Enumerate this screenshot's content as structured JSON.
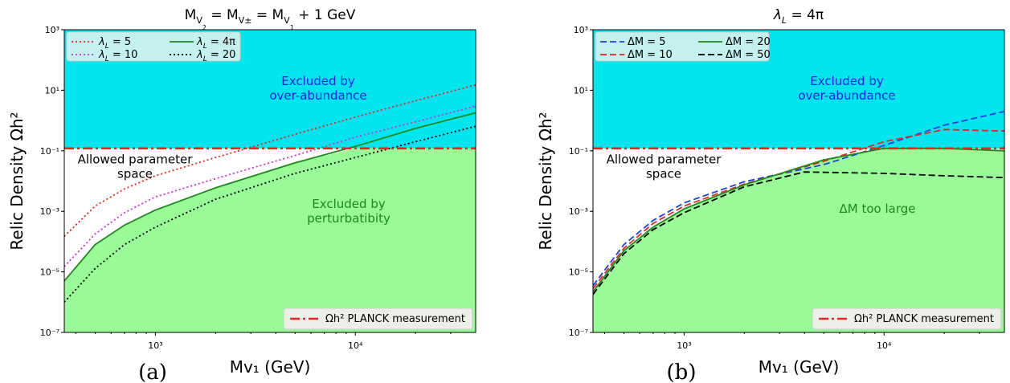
{
  "chart_data": [
    {
      "type": "line",
      "panel": "a",
      "caption": "(a)",
      "title": "M_{V2} = M_{V±} = M_{V1} + 1 GeV",
      "xlabel": "Mv₁ (GeV)",
      "ylabel": "Relic Density Ωh²",
      "xscale": "log",
      "yscale": "log",
      "xlim": [
        350,
        40000
      ],
      "ylim": [
        1e-07,
        1000
      ],
      "xticks": [
        {
          "value": 1000,
          "label": "10³"
        },
        {
          "value": 10000,
          "label": "10⁴"
        }
      ],
      "yticks": [
        {
          "value": 1e-07,
          "label": "10⁻⁷"
        },
        {
          "value": 1e-05,
          "label": "10⁻⁵"
        },
        {
          "value": 0.001,
          "label": "10⁻³"
        },
        {
          "value": 0.1,
          "label": "10⁻¹"
        },
        {
          "value": 10,
          "label": "10¹"
        },
        {
          "value": 1000,
          "label": "10³"
        }
      ],
      "planck_value": 0.12,
      "legend_position": "top-left",
      "legend": [
        "λ_L = 5",
        "λ_L = 10",
        "λ_L = 4π",
        "λ_L = 20"
      ],
      "bottom_legend": "Ωh² PLANCK measurement",
      "regions": {
        "upper_line1": "Excluded by",
        "upper_line2": "over-abundance",
        "middle_line1": "Allowed parameter",
        "middle_line2": "space",
        "lower_line1": "Excluded by",
        "lower_line2": "perturbatibity"
      },
      "series": [
        {
          "name": "λ_L = 5",
          "color": "#e6261f",
          "style": "dotted",
          "fill": false,
          "x": [
            350,
            500,
            700,
            1000,
            2000,
            5000,
            10000,
            20000,
            40000
          ],
          "y": [
            0.00015,
            0.0015,
            0.0055,
            0.015,
            0.06,
            0.35,
            1.3,
            4.5,
            15
          ]
        },
        {
          "name": "λ_L = 10",
          "color": "#cc33cc",
          "style": "dotted",
          "fill": false,
          "x": [
            350,
            500,
            700,
            1000,
            2000,
            5000,
            10000,
            20000,
            40000
          ],
          "y": [
            1.5e-05,
            0.00018,
            0.0009,
            0.003,
            0.012,
            0.07,
            0.28,
            0.9,
            3.0
          ]
        },
        {
          "name": "λ_L = 4π",
          "color": "#1a8a1a",
          "style": "solid",
          "fill": true,
          "x": [
            350,
            500,
            700,
            1000,
            2000,
            5000,
            10000,
            20000,
            40000
          ],
          "y": [
            5e-06,
            8e-05,
            0.00035,
            0.0011,
            0.006,
            0.04,
            0.14,
            0.55,
            1.8
          ]
        },
        {
          "name": "λ_L = 20",
          "color": "#000000",
          "style": "dotted",
          "fill": false,
          "x": [
            350,
            500,
            700,
            1000,
            2000,
            5000,
            10000,
            20000,
            40000
          ],
          "y": [
            1e-06,
            1.3e-05,
            8e-05,
            0.0003,
            0.0025,
            0.018,
            0.06,
            0.2,
            0.65
          ]
        }
      ]
    },
    {
      "type": "line",
      "panel": "b",
      "caption": "(b)",
      "title": "λ_L = 4π",
      "xlabel": "Mv₁ (GeV)",
      "ylabel": "Relic Density Ωh²",
      "xscale": "log",
      "yscale": "log",
      "xlim": [
        350,
        40000
      ],
      "ylim": [
        1e-07,
        1000
      ],
      "xticks": [
        {
          "value": 1000,
          "label": "10³"
        },
        {
          "value": 10000,
          "label": "10⁴"
        }
      ],
      "yticks": [
        {
          "value": 1e-07,
          "label": "10⁻⁷"
        },
        {
          "value": 1e-05,
          "label": "10⁻⁵"
        },
        {
          "value": 0.001,
          "label": "10⁻³"
        },
        {
          "value": 0.1,
          "label": "10⁻¹"
        },
        {
          "value": 10,
          "label": "10¹"
        },
        {
          "value": 1000,
          "label": "10³"
        }
      ],
      "planck_value": 0.12,
      "legend_position": "top-left",
      "legend": [
        "ΔM = 5",
        "ΔM = 10",
        "ΔM = 20",
        "ΔM = 50"
      ],
      "bottom_legend": "Ωh² PLANCK measurement",
      "regions": {
        "upper_line1": "Excluded by",
        "upper_line2": "over-abundance",
        "middle_line1": "Allowed parameter",
        "middle_line2": "space",
        "lower_line1": "ΔM too large",
        "lower_line2": ""
      },
      "series": [
        {
          "name": "ΔM = 5",
          "color": "#1f3fe6",
          "style": "dashed",
          "fill": false,
          "x": [
            350,
            500,
            700,
            1000,
            2000,
            5000,
            10000,
            20000,
            40000
          ],
          "y": [
            3.5e-06,
            8e-05,
            0.0005,
            0.0019,
            0.0095,
            0.035,
            0.15,
            0.7,
            2.0
          ]
        },
        {
          "name": "ΔM = 10",
          "color": "#e6261f",
          "style": "dashed",
          "fill": false,
          "x": [
            350,
            500,
            700,
            1000,
            2000,
            5000,
            10000,
            20000,
            40000
          ],
          "y": [
            2.8e-06,
            6e-05,
            0.0004,
            0.0015,
            0.008,
            0.045,
            0.2,
            0.5,
            0.45
          ]
        },
        {
          "name": "ΔM = 20",
          "color": "#1a8a1a",
          "style": "solid",
          "fill": true,
          "x": [
            350,
            500,
            700,
            1000,
            2000,
            5000,
            10000,
            20000,
            40000
          ],
          "y": [
            2.2e-06,
            5e-05,
            0.0003,
            0.0012,
            0.0075,
            0.05,
            0.12,
            0.12,
            0.1
          ]
        },
        {
          "name": "ΔM = 50",
          "color": "#000000",
          "style": "dashed",
          "fill": false,
          "x": [
            350,
            500,
            700,
            1000,
            2000,
            4000,
            10000,
            20000,
            40000
          ],
          "y": [
            1.8e-06,
            4e-05,
            0.00025,
            0.0009,
            0.0065,
            0.02,
            0.018,
            0.015,
            0.013
          ]
        }
      ]
    }
  ],
  "colors": {
    "excluded_over": "#00e5ee",
    "excluded_pert": "#98fb98",
    "planck_line": "#e6261f",
    "text_over": "#1f1fe0",
    "text_pert": "#1a8a1a"
  }
}
